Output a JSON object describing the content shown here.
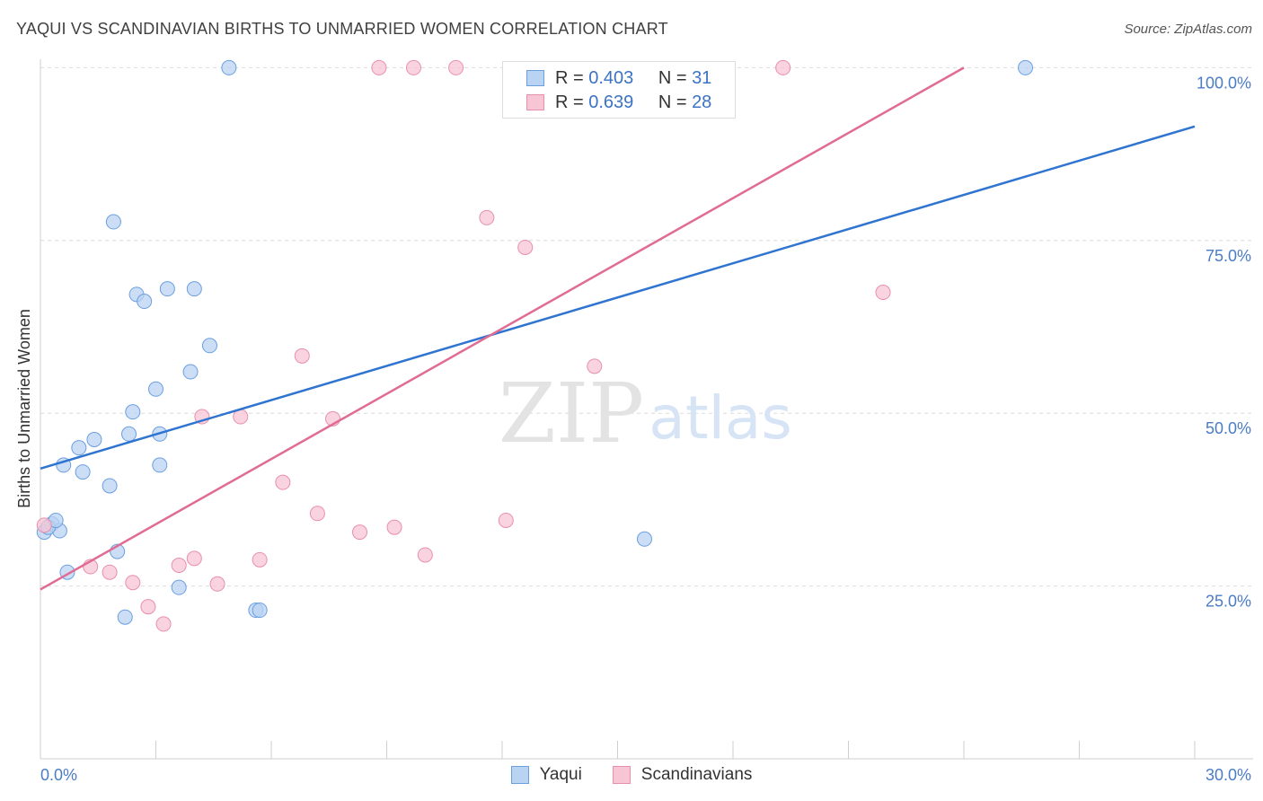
{
  "header": {
    "title": "YAQUI VS SCANDINAVIAN BIRTHS TO UNMARRIED WOMEN CORRELATION CHART",
    "source": "Source: ZipAtlas.com"
  },
  "watermark": {
    "zip": "ZIP",
    "atlas": "atlas"
  },
  "legend": {
    "rows": [
      {
        "r_label": "R =",
        "r_value": "0.403",
        "n_label": "N =",
        "n_value": "31"
      },
      {
        "r_label": "R =",
        "r_value": "0.639",
        "n_label": "N =",
        "n_value": "28"
      }
    ]
  },
  "chart_data": {
    "type": "scatter",
    "title": "YAQUI VS SCANDINAVIAN BIRTHS TO UNMARRIED WOMEN CORRELATION CHART",
    "xlabel": "",
    "ylabel": "Births to Unmarried Women",
    "xlim": [
      0,
      30
    ],
    "ylim": [
      0,
      102
    ],
    "x_tick_labels": [
      "0.0%",
      "30.0%"
    ],
    "y_ticks": [
      25,
      50,
      75,
      100
    ],
    "y_tick_labels": [
      "25.0%",
      "50.0%",
      "75.0%",
      "100.0%"
    ],
    "grid": true,
    "legend_position": "top-center",
    "series": [
      {
        "name": "Yaqui",
        "color": "#6b9fe0",
        "fill": "#b9d3f3",
        "line_color": "#2f74d0",
        "trend": [
          [
            0,
            42
          ],
          [
            30,
            91.5
          ]
        ],
        "points": [
          [
            0.1,
            32.8
          ],
          [
            0.3,
            34
          ],
          [
            0.5,
            33
          ],
          [
            0.6,
            42.5
          ],
          [
            0.7,
            27
          ],
          [
            1.0,
            45
          ],
          [
            1.1,
            41.5
          ],
          [
            1.4,
            46.2
          ],
          [
            1.8,
            39.5
          ],
          [
            1.9,
            77.7
          ],
          [
            2.0,
            30
          ],
          [
            2.2,
            20.5
          ],
          [
            2.3,
            47
          ],
          [
            2.4,
            50.2
          ],
          [
            2.5,
            67.2
          ],
          [
            2.7,
            66.2
          ],
          [
            3.0,
            53.5
          ],
          [
            3.1,
            47
          ],
          [
            3.1,
            42.5
          ],
          [
            3.3,
            68
          ],
          [
            3.6,
            24.8
          ],
          [
            3.9,
            56
          ],
          [
            4.0,
            68
          ],
          [
            4.4,
            59.8
          ],
          [
            4.9,
            100
          ],
          [
            5.6,
            21.5
          ],
          [
            5.7,
            21.5
          ],
          [
            15.7,
            31.8
          ],
          [
            25.6,
            100
          ],
          [
            0.2,
            33.5
          ],
          [
            0.4,
            34.5
          ]
        ]
      },
      {
        "name": "Scandinavians",
        "color": "#e98fab",
        "fill": "#f7c6d5",
        "line_color": "#e06b93",
        "trend": [
          [
            0,
            24.5
          ],
          [
            24,
            100
          ]
        ],
        "points": [
          [
            0.1,
            33.8
          ],
          [
            1.3,
            27.8
          ],
          [
            1.8,
            27
          ],
          [
            2.4,
            25.5
          ],
          [
            2.8,
            22
          ],
          [
            3.2,
            19.5
          ],
          [
            3.6,
            28
          ],
          [
            4.0,
            29
          ],
          [
            4.2,
            49.5
          ],
          [
            4.6,
            25.3
          ],
          [
            5.2,
            49.5
          ],
          [
            5.7,
            28.8
          ],
          [
            6.3,
            40
          ],
          [
            6.8,
            58.3
          ],
          [
            7.2,
            35.5
          ],
          [
            7.6,
            49.2
          ],
          [
            8.3,
            32.8
          ],
          [
            8.8,
            100
          ],
          [
            9.2,
            33.5
          ],
          [
            9.7,
            100
          ],
          [
            10.0,
            29.5
          ],
          [
            10.8,
            100
          ],
          [
            11.6,
            78.3
          ],
          [
            12.1,
            34.5
          ],
          [
            12.6,
            74
          ],
          [
            14.4,
            56.8
          ],
          [
            19.3,
            100
          ],
          [
            21.9,
            67.5
          ]
        ]
      }
    ]
  }
}
